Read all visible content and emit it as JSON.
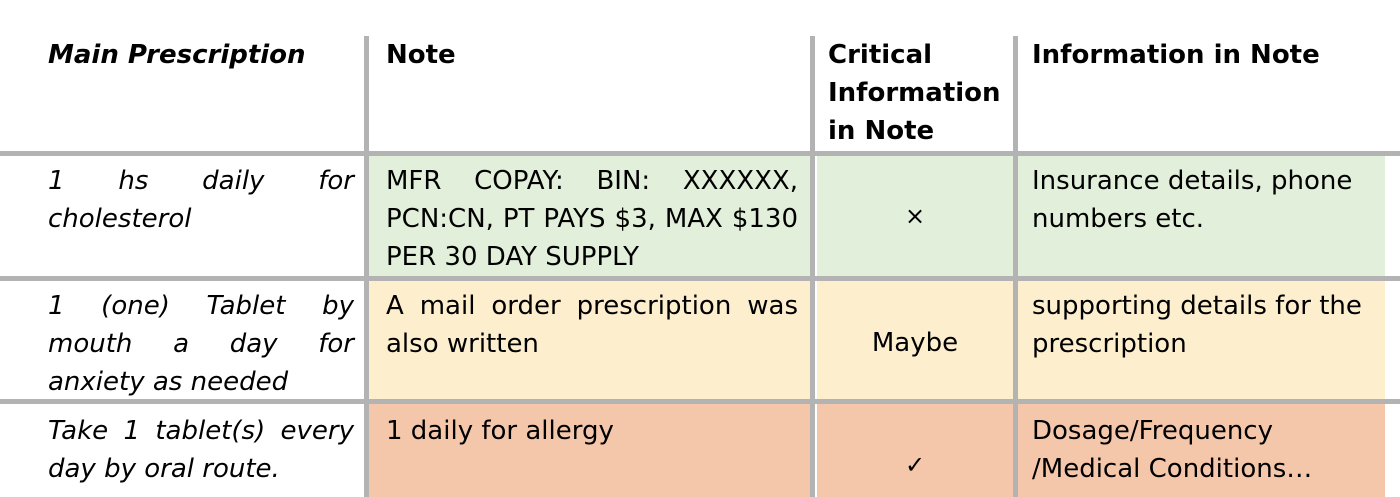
{
  "headers": [
    "Main Prescription",
    "Note",
    "Critical Information in Note",
    "Information in Note"
  ],
  "rows": [
    {
      "prescription": "1 hs daily for cholesterol",
      "note": "MFR COPAY: BIN: XXXXXX, PCN:CN, PT PAYS $3, MAX $130 PER 30 DAY SUPPLY",
      "critical": "×",
      "critical_icon": "x-mark-icon",
      "info": "Insurance details, phone numbers etc.",
      "color": "#e2efda"
    },
    {
      "prescription": "1 (one) Tablet by mouth a day for anxiety as needed",
      "note": "A mail order prescription was also written",
      "critical": "Maybe",
      "info": "supporting details for the prescription",
      "color": "#fdeece"
    },
    {
      "prescription": "Take 1 tablet(s) every day by oral route.",
      "note": "1 daily for allergy",
      "critical": "✓",
      "critical_icon": "check-mark-icon",
      "info": "Dosage/Frequency /Medical Conditions…",
      "color": "#f4c7ab"
    }
  ]
}
